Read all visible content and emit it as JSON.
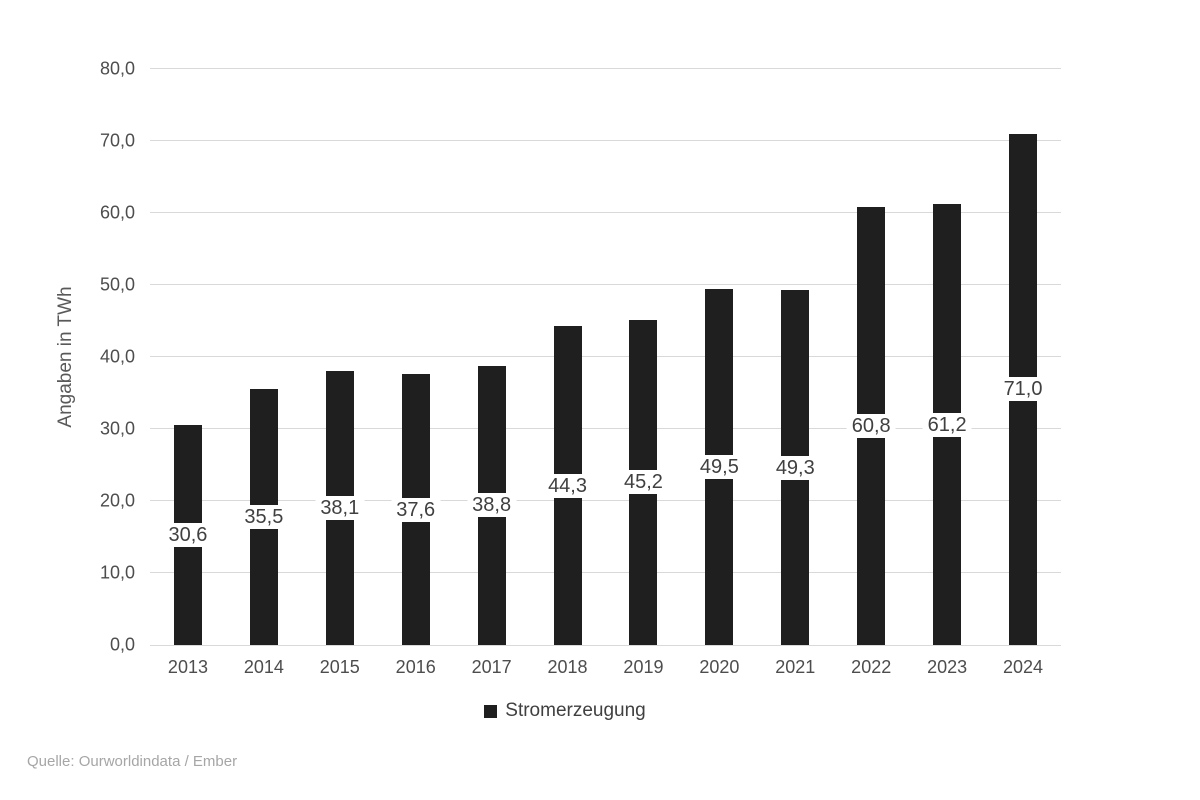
{
  "chart_data": {
    "type": "bar",
    "title": "",
    "categories": [
      "2013",
      "2014",
      "2015",
      "2016",
      "2017",
      "2018",
      "2019",
      "2020",
      "2021",
      "2022",
      "2023",
      "2024"
    ],
    "series": [
      {
        "name": "Stromerzeugung",
        "values": [
          30.6,
          35.5,
          38.1,
          37.6,
          38.8,
          44.3,
          45.2,
          49.5,
          49.3,
          60.8,
          61.2,
          71.0
        ],
        "value_labels": [
          "30,6",
          "35,5",
          "38,1",
          "37,6",
          "38,8",
          "44,3",
          "45,2",
          "49,5",
          "49,3",
          "60,8",
          "61,2",
          "71,0"
        ]
      }
    ],
    "xlabel": "",
    "ylabel": "Angaben in TWh",
    "ylim": [
      0,
      80
    ],
    "ytick_step": 10,
    "ytick_labels": [
      "0,0",
      "10,0",
      "20,0",
      "30,0",
      "40,0",
      "50,0",
      "60,0",
      "70,0",
      "80,0"
    ],
    "grid": true,
    "legend_position": "bottom",
    "bar_color": "#1f1f1f",
    "gridline_color": "#d9d9d9",
    "label_color": "#404040",
    "axis_text_color": "#4d4d4d"
  },
  "legend": {
    "label": "Stromerzeugung",
    "swatch_color": "#1f1f1f"
  },
  "footer": {
    "source": "Quelle: Ourworldindata / Ember"
  }
}
